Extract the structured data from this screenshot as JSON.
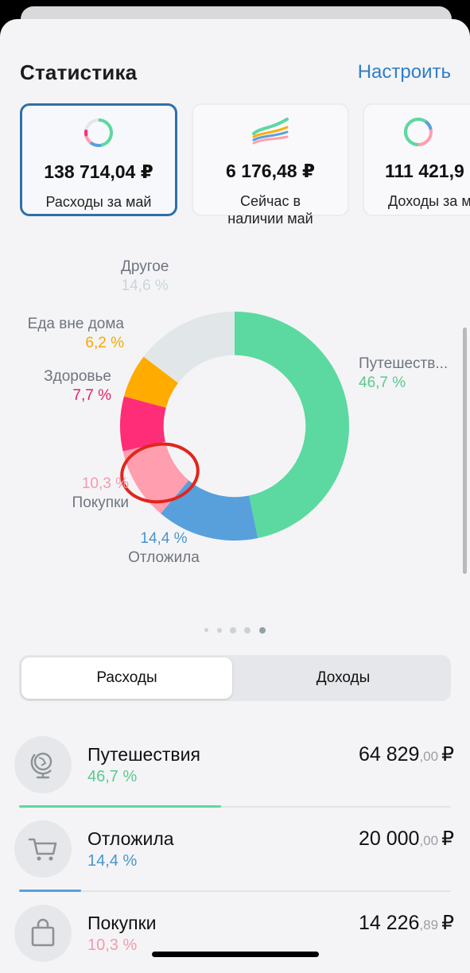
{
  "header": {
    "title": "Статистика",
    "configure_label": "Настроить"
  },
  "cards": [
    {
      "amount": "138 714,04 ₽",
      "label": "Расходы за май",
      "icon": "donut-icon"
    },
    {
      "amount": "6 176,48 ₽",
      "label": "Сейчас в\nналичии май",
      "icon": "waves-icon"
    },
    {
      "amount": "111 421,9",
      "label": "Доходы за м",
      "icon": "donut-icon"
    }
  ],
  "chart_data": {
    "type": "pie",
    "labels": [
      "Путешествия",
      "Отложила",
      "Покупки",
      "Здоровье",
      "Еда вне дома",
      "Другое"
    ],
    "values": [
      46.7,
      14.4,
      10.3,
      7.7,
      6.2,
      14.6
    ],
    "value_labels": [
      "46,7 %",
      "14,4 %",
      "10,3 %",
      "7,7 %",
      "6,2 %",
      "14,6 %"
    ],
    "display_names": [
      "Путешеств...",
      "Отложила",
      "Покупки",
      "Здоровье",
      "Еда вне дома",
      "Другое"
    ],
    "colors": [
      "#5bd9a0",
      "#57a0dc",
      "#ff9eaf",
      "#ff2d78",
      "#ffab00",
      "#e1e7e9"
    ],
    "label_colors": [
      "#5bc98f",
      "#4a95c9",
      "#f49aac",
      "#e0226a",
      "#f5a800",
      "#c9d6db"
    ],
    "hole": 0.62
  },
  "pager": {
    "count": 5,
    "active": 4
  },
  "tabs": {
    "expenses": "Расходы",
    "income": "Доходы"
  },
  "list": [
    {
      "name": "Путешествия",
      "pct": "46,7 %",
      "amount_main": "64 829",
      "amount_kop": ",00",
      "currency": "₽",
      "color": "#5bd9a0",
      "icon": "globe-icon",
      "share": 0.467
    },
    {
      "name": "Отложила",
      "pct": "14,4 %",
      "amount_main": "20 000",
      "amount_kop": ",00",
      "currency": "₽",
      "color": "#57a0dc",
      "icon": "cart-icon",
      "share": 0.144
    },
    {
      "name": "Покупки",
      "pct": "10,3 %",
      "amount_main": "14 226",
      "amount_kop": ",89",
      "currency": "₽",
      "color": "#f49aac",
      "icon": "bag-icon",
      "share": 0.103
    }
  ]
}
